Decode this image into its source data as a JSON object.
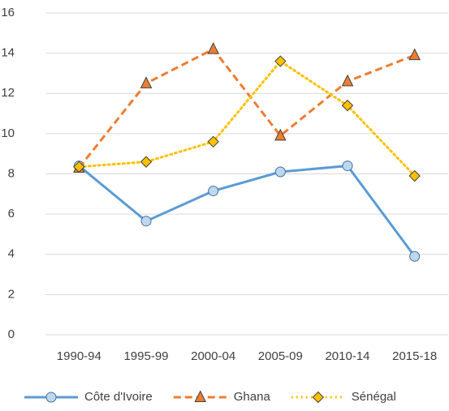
{
  "chart_data": {
    "type": "line",
    "categories": [
      "1990-94",
      "1995-99",
      "2000-04",
      "2005-09",
      "2010-14",
      "2015-18"
    ],
    "series": [
      {
        "name": "Côte d'Ivoire",
        "color": "#5b9bd5",
        "dash": "solid",
        "marker": "circle",
        "values": [
          8.4,
          5.65,
          7.15,
          8.1,
          8.4,
          3.9
        ]
      },
      {
        "name": "Ghana",
        "color": "#ed7d31",
        "dash": "dashed",
        "marker": "triangle",
        "values": [
          8.3,
          12.5,
          14.2,
          9.9,
          12.6,
          13.9
        ]
      },
      {
        "name": "Sénégal",
        "color": "#ffc000",
        "dash": "dotted",
        "marker": "diamond",
        "values": [
          8.35,
          8.6,
          9.6,
          13.6,
          11.4,
          7.9
        ]
      }
    ],
    "ylim": [
      0,
      16
    ],
    "yticks": [
      0,
      2,
      4,
      6,
      8,
      10,
      12,
      14,
      16
    ],
    "grid": true,
    "legend": "bottom"
  }
}
